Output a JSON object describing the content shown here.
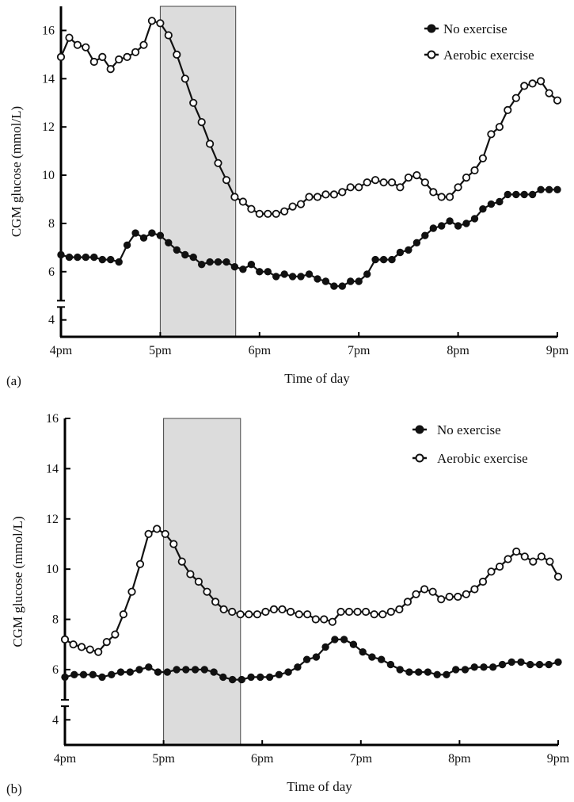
{
  "chart_data": [
    {
      "panel": "(a)",
      "type": "line",
      "xlabel": "Time of day",
      "ylabel": "CGM glucose (mmol/L)",
      "x_ticks": [
        "4pm",
        "5pm",
        "6pm",
        "7pm",
        "8pm",
        "9pm"
      ],
      "xlim": [
        0,
        5
      ],
      "ylim": [
        3.3,
        17
      ],
      "y_ticks": [
        4,
        6,
        8,
        10,
        12,
        14,
        16
      ],
      "y_axis_break": true,
      "shaded_region": [
        1.0,
        1.76
      ],
      "legend": "top-right",
      "series": [
        {
          "name": "No exercise",
          "marker": "filled",
          "values": [
            6.7,
            6.6,
            6.6,
            6.6,
            6.6,
            6.5,
            6.5,
            6.4,
            7.1,
            7.6,
            7.4,
            7.6,
            7.5,
            7.2,
            6.9,
            6.7,
            6.6,
            6.3,
            6.4,
            6.4,
            6.4,
            6.2,
            6.1,
            6.3,
            6.0,
            6.0,
            5.8,
            5.9,
            5.8,
            5.8,
            5.9,
            5.7,
            5.6,
            5.4,
            5.4,
            5.6,
            5.6,
            5.9,
            6.5,
            6.5,
            6.5,
            6.8,
            6.9,
            7.2,
            7.5,
            7.8,
            7.9,
            8.1,
            7.9,
            8.0,
            8.2,
            8.6,
            8.8,
            8.9,
            9.2,
            9.2,
            9.2,
            9.2,
            9.4,
            9.4,
            9.4
          ]
        },
        {
          "name": "Aerobic exercise",
          "marker": "open",
          "values": [
            14.9,
            15.7,
            15.4,
            15.3,
            14.7,
            14.9,
            14.4,
            14.8,
            14.9,
            15.1,
            15.4,
            16.4,
            16.3,
            15.8,
            15.0,
            14.0,
            13.0,
            12.2,
            11.3,
            10.5,
            9.8,
            9.1,
            8.9,
            8.6,
            8.4,
            8.4,
            8.4,
            8.5,
            8.7,
            8.8,
            9.1,
            9.1,
            9.2,
            9.2,
            9.3,
            9.5,
            9.5,
            9.7,
            9.8,
            9.7,
            9.7,
            9.5,
            9.9,
            10.0,
            9.7,
            9.3,
            9.1,
            9.1,
            9.5,
            9.9,
            10.2,
            10.7,
            11.7,
            12.0,
            12.7,
            13.2,
            13.7,
            13.8,
            13.9,
            13.4,
            13.1
          ]
        }
      ]
    },
    {
      "panel": "(b)",
      "type": "line",
      "xlabel": "Time of day",
      "ylabel": "CGM glucose (mmol/L)",
      "x_ticks": [
        "4pm",
        "5pm",
        "6pm",
        "7pm",
        "8pm",
        "9pm"
      ],
      "xlim": [
        0,
        5
      ],
      "ylim": [
        3.0,
        16
      ],
      "y_ticks": [
        4,
        6,
        8,
        10,
        12,
        14,
        16
      ],
      "y_axis_break": true,
      "shaded_region": [
        1.0,
        1.78
      ],
      "legend": "top-right",
      "series": [
        {
          "name": "No exercise",
          "marker": "filled",
          "values": [
            5.7,
            5.8,
            5.8,
            5.8,
            5.7,
            5.8,
            5.9,
            5.9,
            6.0,
            6.1,
            5.9,
            5.9,
            6.0,
            6.0,
            6.0,
            6.0,
            5.9,
            5.7,
            5.6,
            5.6,
            5.7,
            5.7,
            5.7,
            5.8,
            5.9,
            6.1,
            6.4,
            6.5,
            6.9,
            7.2,
            7.2,
            7.0,
            6.7,
            6.5,
            6.4,
            6.2,
            6.0,
            5.9,
            5.9,
            5.9,
            5.8,
            5.8,
            6.0,
            6.0,
            6.1,
            6.1,
            6.1,
            6.2,
            6.3,
            6.3,
            6.2,
            6.2,
            6.2,
            6.3
          ]
        },
        {
          "name": "Aerobic exercise",
          "marker": "open",
          "values": [
            7.2,
            7.0,
            6.9,
            6.8,
            6.7,
            7.1,
            7.4,
            8.2,
            9.1,
            10.2,
            11.4,
            11.6,
            11.4,
            11.0,
            10.3,
            9.8,
            9.5,
            9.1,
            8.7,
            8.4,
            8.3,
            8.2,
            8.2,
            8.2,
            8.3,
            8.4,
            8.4,
            8.3,
            8.2,
            8.2,
            8.0,
            8.0,
            7.9,
            8.3,
            8.3,
            8.3,
            8.3,
            8.2,
            8.2,
            8.3,
            8.4,
            8.7,
            9.0,
            9.2,
            9.1,
            8.8,
            8.9,
            8.9,
            9.0,
            9.2,
            9.5,
            9.9,
            10.1,
            10.4,
            10.7,
            10.5,
            10.3,
            10.5,
            10.3,
            9.7
          ]
        }
      ]
    }
  ]
}
